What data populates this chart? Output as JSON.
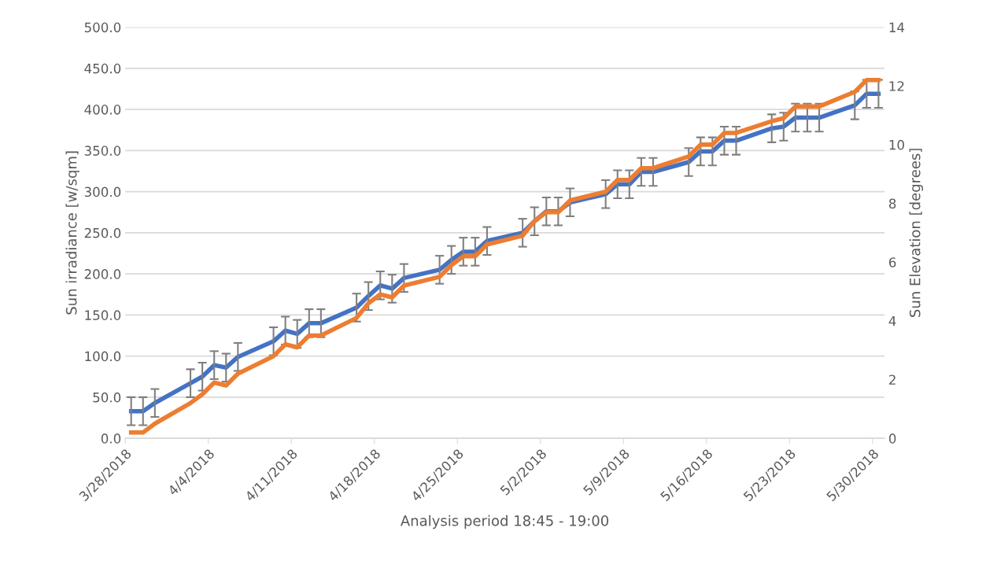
{
  "chart_data": {
    "type": "line",
    "xlabel": "Analysis period 18:45 - 19:00",
    "ylabel": "Sun irradiance [w/sqm]",
    "y2label": "Sun Elevation [degrees]",
    "x": [
      "2018-03-28T12:00",
      "2018-03-29T12:00",
      "2018-03-30T12:00",
      "2018-04-02T12:00",
      "2018-04-03T12:00",
      "2018-04-04T12:00",
      "2018-04-05T12:00",
      "2018-04-06T12:00",
      "2018-04-09T12:00",
      "2018-04-10T12:00",
      "2018-04-11T12:00",
      "2018-04-12T12:00",
      "2018-04-13T12:00",
      "2018-04-16T12:00",
      "2018-04-17T12:00",
      "2018-04-18T12:00",
      "2018-04-19T12:00",
      "2018-04-20T12:00",
      "2018-04-23T12:00",
      "2018-04-24T12:00",
      "2018-04-25T12:00",
      "2018-04-26T12:00",
      "2018-04-27T12:00",
      "2018-04-30T12:00",
      "2018-05-01T12:00",
      "2018-05-02T12:00",
      "2018-05-03T12:00",
      "2018-05-04T12:00",
      "2018-05-07T12:00",
      "2018-05-08T12:00",
      "2018-05-09T12:00",
      "2018-05-10T12:00",
      "2018-05-11T12:00",
      "2018-05-14T12:00",
      "2018-05-15T12:00",
      "2018-05-16T12:00",
      "2018-05-17T12:00",
      "2018-05-18T12:00",
      "2018-05-21T12:00",
      "2018-05-22T12:00",
      "2018-05-23T12:00",
      "2018-05-24T12:00",
      "2018-05-25T12:00",
      "2018-05-28T12:00",
      "2018-05-29T12:00",
      "2018-05-30T12:00"
    ],
    "series": [
      {
        "color": "#4472c4",
        "values": [
          33,
          33,
          43,
          67,
          75,
          89,
          86,
          99,
          118,
          131,
          127,
          140,
          140,
          159,
          173,
          186,
          182,
          195,
          205,
          217,
          227,
          227,
          240,
          250,
          264,
          276,
          276,
          287,
          297,
          309,
          309,
          324,
          324,
          336,
          349,
          349,
          362,
          362,
          377,
          379,
          390,
          390,
          390,
          405,
          419,
          419
        ],
        "errors": [
          17,
          17,
          17,
          17,
          17,
          17,
          17,
          17,
          17,
          17,
          17,
          17,
          17,
          17,
          17,
          17,
          17,
          17,
          17,
          17,
          17,
          17,
          17,
          17,
          17,
          17,
          17,
          17,
          17,
          17,
          17,
          17,
          17,
          17,
          17,
          17,
          17,
          17,
          17,
          17,
          17,
          17,
          17,
          17,
          17,
          17
        ]
      },
      {
        "color": "#ed7d31",
        "axis": "y2",
        "values": [
          0.2,
          0.2,
          0.5,
          1.2,
          1.5,
          1.9,
          1.8,
          2.2,
          2.8,
          3.2,
          3.1,
          3.5,
          3.5,
          4.1,
          4.6,
          4.9,
          4.8,
          5.2,
          5.5,
          5.9,
          6.2,
          6.2,
          6.6,
          6.9,
          7.4,
          7.7,
          7.7,
          8.1,
          8.4,
          8.8,
          8.8,
          9.2,
          9.2,
          9.6,
          10.0,
          10.0,
          10.4,
          10.4,
          10.8,
          10.9,
          11.3,
          11.3,
          11.3,
          11.8,
          12.2,
          12.2
        ]
      }
    ],
    "xlim": [
      "2018-03-28",
      "2018-05-31"
    ],
    "xticks": [
      {
        "value": "2018-03-28",
        "label": "3/28/2018"
      },
      {
        "value": "2018-04-04",
        "label": "4/4/2018"
      },
      {
        "value": "2018-04-11",
        "label": "4/11/2018"
      },
      {
        "value": "2018-04-18",
        "label": "4/18/2018"
      },
      {
        "value": "2018-04-25",
        "label": "4/25/2018"
      },
      {
        "value": "2018-05-02",
        "label": "5/2/2018"
      },
      {
        "value": "2018-05-09",
        "label": "5/9/2018"
      },
      {
        "value": "2018-05-16",
        "label": "5/16/2018"
      },
      {
        "value": "2018-05-23",
        "label": "5/23/2018"
      },
      {
        "value": "2018-05-30",
        "label": "5/30/2018"
      }
    ],
    "ylim": [
      0,
      500
    ],
    "yticks": [
      {
        "value": 0,
        "label": "0.0"
      },
      {
        "value": 50,
        "label": "50.0"
      },
      {
        "value": 100,
        "label": "100.0"
      },
      {
        "value": 150,
        "label": "150.0"
      },
      {
        "value": 200,
        "label": "200.0"
      },
      {
        "value": 250,
        "label": "250.0"
      },
      {
        "value": 300,
        "label": "300.0"
      },
      {
        "value": 350,
        "label": "350.0"
      },
      {
        "value": 400,
        "label": "400.0"
      },
      {
        "value": 450,
        "label": "450.0"
      },
      {
        "value": 500,
        "label": "500.0"
      }
    ],
    "y2lim": [
      0,
      14
    ],
    "y2ticks": [
      0,
      2,
      4,
      6,
      8,
      10,
      12,
      14
    ],
    "grid": "y",
    "line_style": "solid",
    "marker": "none"
  }
}
